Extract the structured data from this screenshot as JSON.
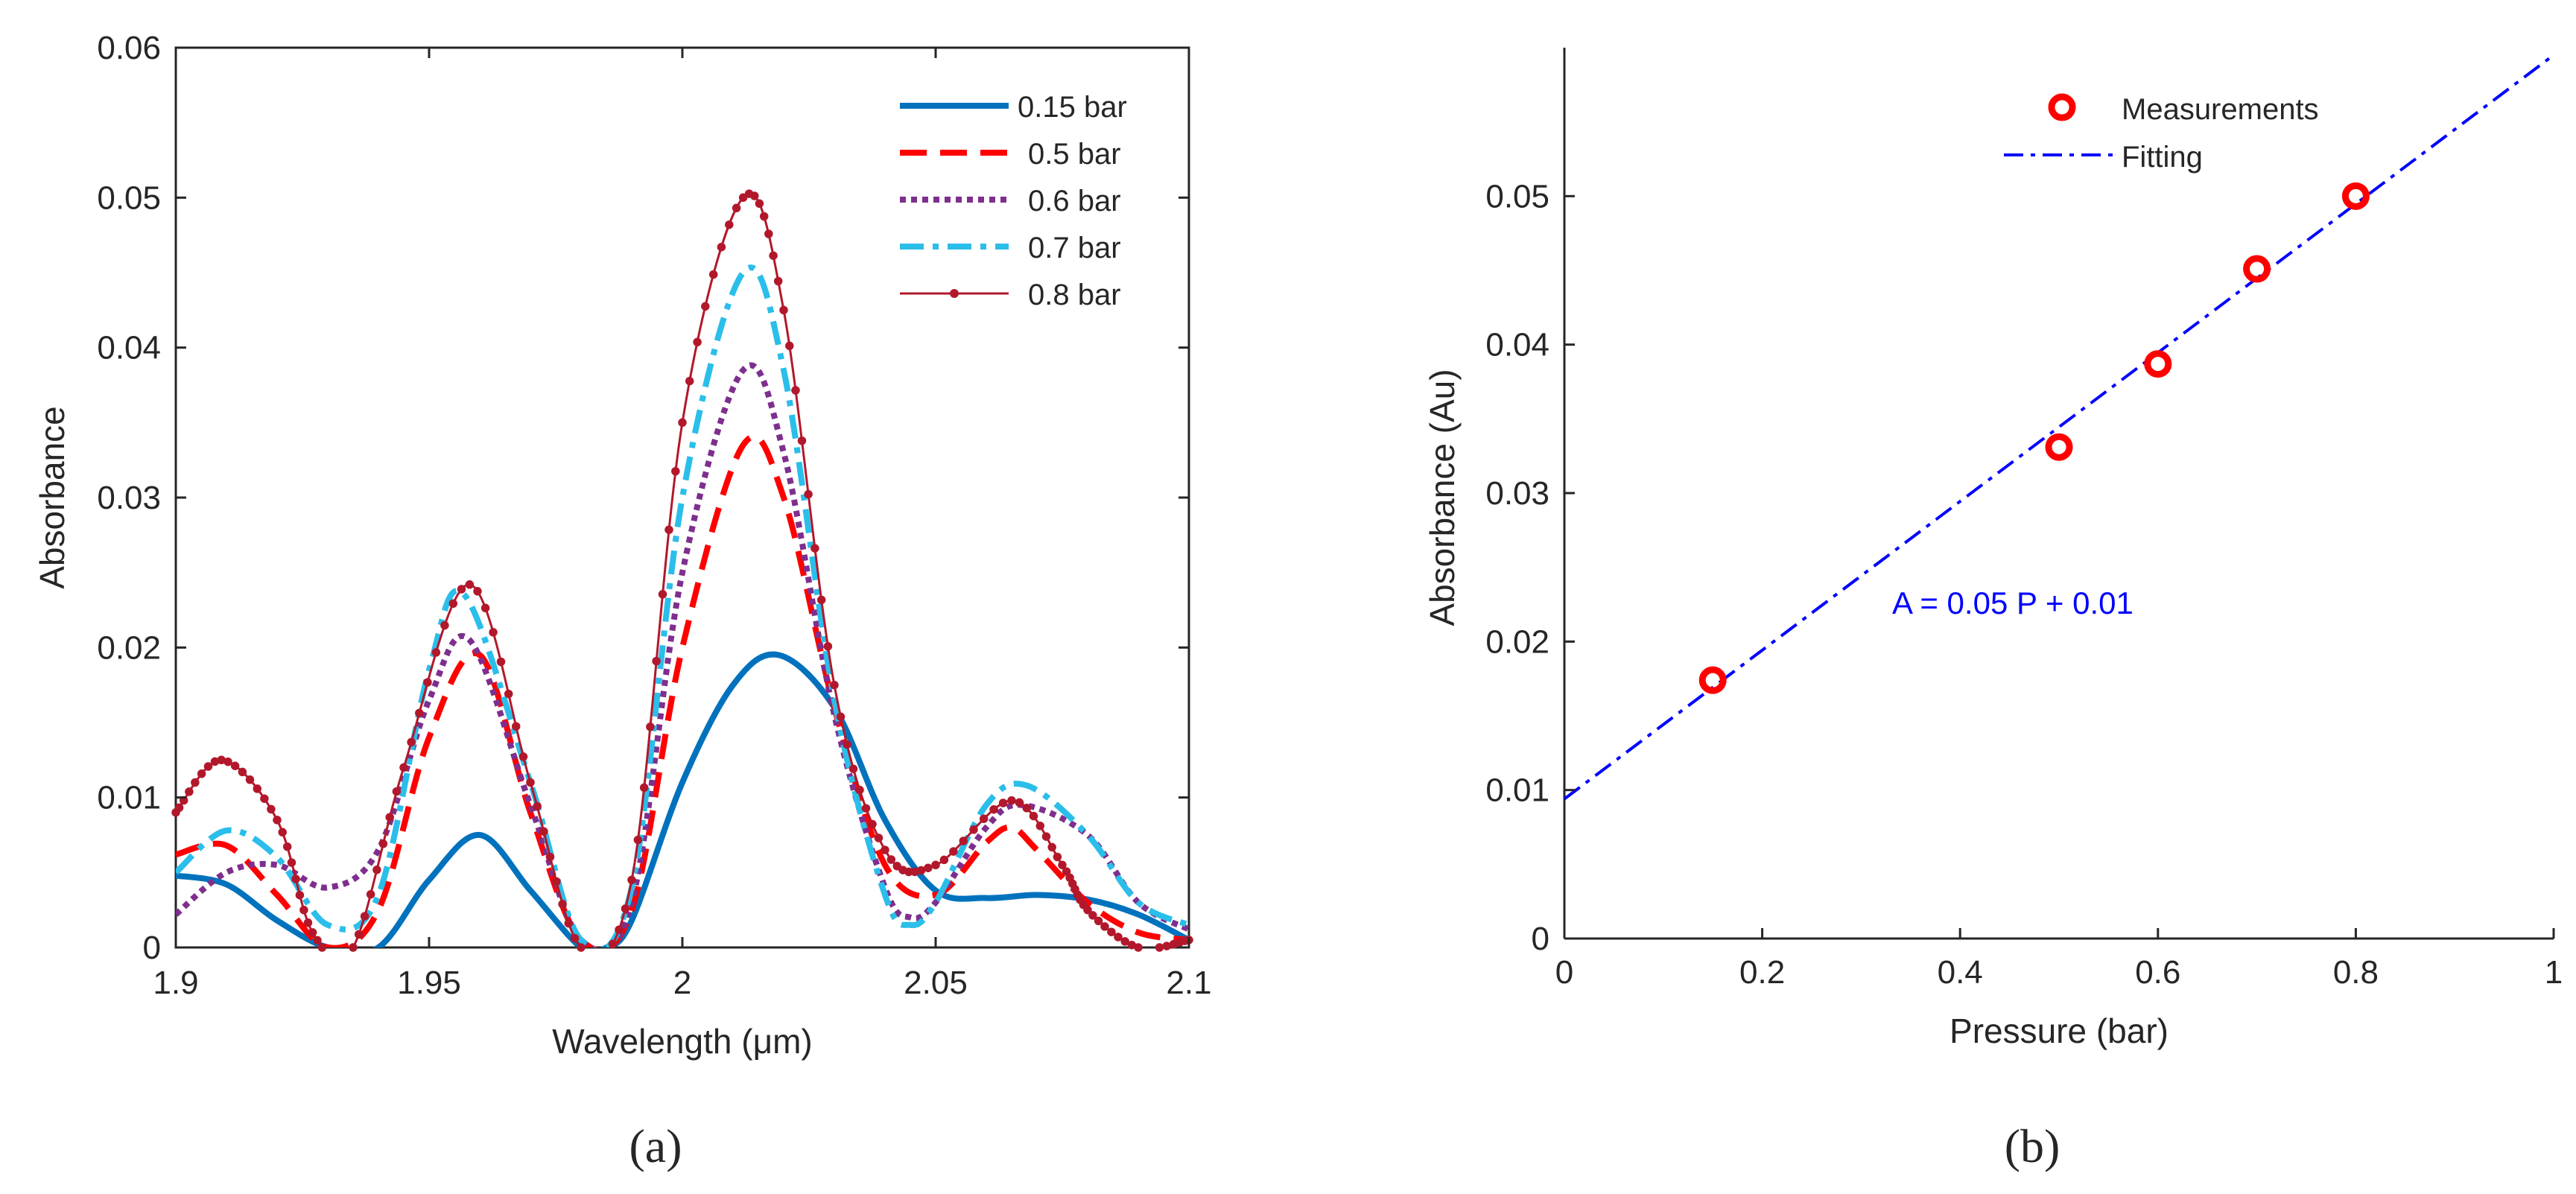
{
  "colors": {
    "blue": "#0072BD",
    "red": "#FF0000",
    "purple": "#7E2F8E",
    "cyan": "#2ABEEA",
    "darkred": "#B2182B",
    "fit": "#0000FF",
    "marker": "#FF0000",
    "axis": "#262626"
  },
  "panel_a": {
    "caption": "(a)",
    "legend_items": [
      {
        "label": "0.15 bar",
        "color": "#0072BD",
        "style": "solid-thick"
      },
      {
        "label": "0.5 bar",
        "color": "#FF0000",
        "style": "dashed"
      },
      {
        "label": "0.6 bar",
        "color": "#7E2F8E",
        "style": "dotted"
      },
      {
        "label": "0.7 bar",
        "color": "#2ABEEA",
        "style": "dashdot"
      },
      {
        "label": "0.8 bar",
        "color": "#B2182B",
        "style": "marker-line"
      }
    ]
  },
  "panel_b": {
    "caption": "(b)",
    "legend_items": [
      {
        "label": "Measurements",
        "color": "#FF0000",
        "style": "circle"
      },
      {
        "label": "Fitting",
        "color": "#0000FF",
        "style": "dashdot"
      }
    ],
    "equation": "A = 0.05 P + 0.01"
  },
  "chart_data": [
    {
      "type": "line",
      "title": "",
      "xlabel": "Wavelength (μm)",
      "ylabel": "Absorbance",
      "xlim": [
        1.9,
        2.1
      ],
      "ylim": [
        0,
        0.06
      ],
      "xticks": [
        1.9,
        1.95,
        2.0,
        2.05,
        2.1
      ],
      "xtick_labels": [
        "1.9",
        "1.95",
        "2",
        "2.05",
        "2.1"
      ],
      "yticks": [
        0,
        0.01,
        0.02,
        0.03,
        0.04,
        0.05,
        0.06
      ],
      "ytick_labels": [
        "0",
        "0.01",
        "0.02",
        "0.03",
        "0.04",
        "0.05",
        "0.06"
      ],
      "grid": false,
      "legend_position": "top-right",
      "series": [
        {
          "name": "0.15 bar",
          "x": [
            1.9,
            1.91,
            1.92,
            1.93,
            1.94,
            1.95,
            1.96,
            1.97,
            1.98,
            1.985,
            1.99,
            2.0,
            2.01,
            2.019,
            2.03,
            2.04,
            2.05,
            2.06,
            2.07,
            2.08,
            2.09,
            2.1
          ],
          "y": [
            0.0048,
            0.0042,
            0.0018,
            0.0,
            0.0,
            0.0045,
            0.0075,
            0.0038,
            0.0,
            0.0,
            0.0018,
            0.011,
            0.0175,
            0.0195,
            0.016,
            0.0085,
            0.0038,
            0.0033,
            0.0035,
            0.0032,
            0.0022,
            0.0005
          ]
        },
        {
          "name": "0.5 bar",
          "x": [
            1.9,
            1.91,
            1.92,
            1.93,
            1.94,
            1.95,
            1.96,
            1.97,
            1.98,
            1.99,
            2.0,
            2.012,
            2.02,
            2.03,
            2.04,
            2.05,
            2.06,
            2.065,
            2.07,
            2.08,
            2.09,
            2.1
          ],
          "y": [
            0.0062,
            0.0068,
            0.0035,
            0.0,
            0.0025,
            0.014,
            0.0195,
            0.009,
            0.0005,
            0.0025,
            0.02,
            0.0335,
            0.03,
            0.016,
            0.0055,
            0.0035,
            0.007,
            0.008,
            0.0065,
            0.003,
            0.001,
            0.0005
          ]
        },
        {
          "name": "0.6 bar",
          "x": [
            1.9,
            1.91,
            1.92,
            1.93,
            1.94,
            1.95,
            1.958,
            1.97,
            1.98,
            1.99,
            2.0,
            2.012,
            2.02,
            2.03,
            2.04,
            2.045,
            2.05,
            2.06,
            2.067,
            2.08,
            2.09,
            2.1
          ],
          "y": [
            0.0022,
            0.005,
            0.0055,
            0.004,
            0.0065,
            0.0165,
            0.0205,
            0.0095,
            0.0005,
            0.003,
            0.025,
            0.0385,
            0.033,
            0.0155,
            0.004,
            0.002,
            0.003,
            0.008,
            0.0095,
            0.0075,
            0.003,
            0.0012
          ]
        },
        {
          "name": "0.7 bar",
          "x": [
            1.9,
            1.91,
            1.92,
            1.93,
            1.94,
            1.95,
            1.957,
            1.97,
            1.98,
            1.99,
            2.0,
            2.012,
            2.02,
            2.03,
            2.04,
            2.045,
            2.05,
            2.06,
            2.068,
            2.08,
            2.09,
            2.1
          ],
          "y": [
            0.005,
            0.0078,
            0.006,
            0.0015,
            0.0035,
            0.0185,
            0.0235,
            0.011,
            0.0005,
            0.004,
            0.03,
            0.045,
            0.0385,
            0.0165,
            0.0035,
            0.0015,
            0.003,
            0.0095,
            0.0108,
            0.0075,
            0.003,
            0.0015
          ]
        },
        {
          "name": "0.8 bar",
          "x": [
            1.9,
            1.909,
            1.92,
            1.927,
            1.935,
            1.945,
            1.958,
            1.97,
            1.98,
            1.99,
            2.0,
            2.012,
            2.02,
            2.03,
            2.04,
            2.05,
            2.065,
            2.075,
            2.08,
            2.09,
            2.1
          ],
          "y": [
            0.009,
            0.0125,
            0.0085,
            0.001,
            0.0,
            0.012,
            0.0242,
            0.011,
            0.0,
            0.0045,
            0.035,
            0.05,
            0.0425,
            0.0175,
            0.0065,
            0.0055,
            0.0098,
            0.0055,
            0.0025,
            0.0,
            0.0005
          ]
        }
      ]
    },
    {
      "type": "scatter",
      "title": "",
      "xlabel": "Pressure (bar)",
      "ylabel": "Absorbance (Au)",
      "xlim": [
        0,
        1
      ],
      "ylim": [
        0,
        0.06
      ],
      "xticks": [
        0,
        0.2,
        0.4,
        0.6,
        0.8,
        1
      ],
      "xtick_labels": [
        "0",
        "0.2",
        "0.4",
        "0.6",
        "0.8",
        "1"
      ],
      "yticks": [
        0,
        0.01,
        0.02,
        0.03,
        0.04,
        0.05
      ],
      "ytick_labels": [
        "0",
        "0.01",
        "0.02",
        "0.03",
        "0.04",
        "0.05"
      ],
      "grid": false,
      "legend_position": "top-center",
      "series": [
        {
          "name": "Measurements",
          "x": [
            0.15,
            0.5,
            0.6,
            0.7,
            0.8
          ],
          "y": [
            0.0174,
            0.0331,
            0.0387,
            0.0451,
            0.05
          ]
        },
        {
          "name": "Fitting",
          "x": [
            0,
            1
          ],
          "y": [
            0.0094,
            0.0595
          ]
        }
      ],
      "annotations": [
        "A = 0.05 P + 0.01"
      ]
    }
  ]
}
